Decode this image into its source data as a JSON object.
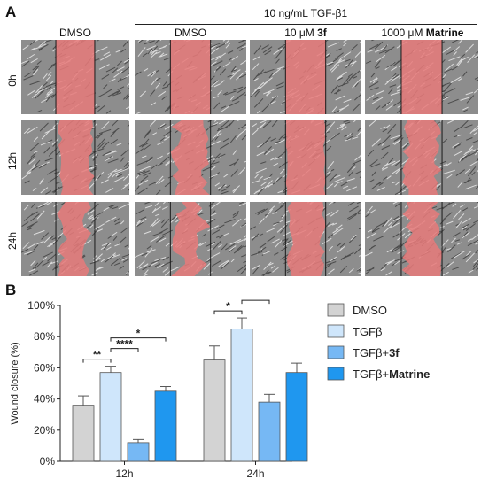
{
  "panel_a": {
    "letter": "A",
    "treatment_header": "10 ng/mL TGF-β1",
    "columns": [
      {
        "prefix": "DMSO",
        "bold": ""
      },
      {
        "prefix": "DMSO",
        "bold": ""
      },
      {
        "prefix": "10 μM ",
        "bold": "3f"
      },
      {
        "prefix": "1000 μM ",
        "bold": "Matrine"
      }
    ],
    "rows": [
      "0h",
      "12h",
      "24h"
    ],
    "wound_color": "#e87a7a",
    "wound_fill": [
      [
        0.0,
        0.0,
        0.0,
        0.0
      ],
      [
        0.36,
        0.57,
        0.12,
        0.45
      ],
      [
        0.65,
        0.85,
        0.38,
        0.57
      ]
    ]
  },
  "panel_b": {
    "letter": "B"
  },
  "chart_data": {
    "type": "bar",
    "title": "",
    "xlabel": "",
    "ylabel": "Wound closure (%)",
    "ylim": [
      0,
      100
    ],
    "yticks": [
      "0%",
      "20%",
      "40%",
      "60%",
      "80%",
      "100%"
    ],
    "categories": [
      "12h",
      "24h"
    ],
    "series": [
      {
        "name": "DMSO",
        "name_bold": "",
        "color": "#d3d3d3",
        "values": [
          36,
          65
        ],
        "errors": [
          6,
          9
        ]
      },
      {
        "name": "TGFβ",
        "name_bold": "",
        "color": "#cfe6fb",
        "values": [
          57,
          85
        ],
        "errors": [
          4,
          7
        ]
      },
      {
        "name": "TGFβ+",
        "name_bold": "3f",
        "color": "#76b8f4",
        "values": [
          12,
          38
        ],
        "errors": [
          2,
          5
        ]
      },
      {
        "name": "TGFβ+",
        "name_bold": "Matrine",
        "color": "#1f97ef",
        "values": [
          45,
          57
        ],
        "errors": [
          3,
          6
        ]
      }
    ],
    "significance": [
      {
        "group": 0,
        "from": 0,
        "to": 1,
        "label": "**"
      },
      {
        "group": 0,
        "from": 1,
        "to": 2,
        "label": "****"
      },
      {
        "group": 0,
        "from": 1,
        "to": 3,
        "label": "*"
      },
      {
        "group": 1,
        "from": 0,
        "to": 1,
        "label": "*"
      },
      {
        "group": 1,
        "from": 1,
        "to": 2,
        "label": "***"
      },
      {
        "group": 1,
        "from": 1,
        "to": 3,
        "label": "**"
      }
    ],
    "legend_position": "right"
  }
}
